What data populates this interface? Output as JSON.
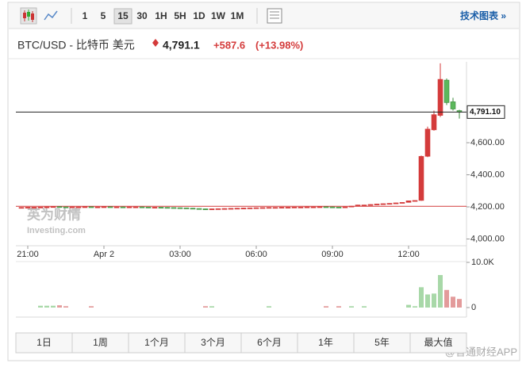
{
  "toolbar": {
    "intervals": [
      "1",
      "5",
      "15",
      "30",
      "1H",
      "5H",
      "1D",
      "1W",
      "1M"
    ],
    "selected": "15",
    "link": "技术图表 »"
  },
  "header": {
    "title": "BTC/USD - 比特币 美元",
    "price": "4,791.1",
    "change": "+587.6",
    "change_pct": "(+13.98%)"
  },
  "chart_data": {
    "type": "candlestick",
    "categories": [
      null,
      "21:00",
      null,
      null,
      null,
      null,
      null,
      null,
      null,
      null,
      null,
      null,
      null,
      "Apr 2",
      null,
      null,
      null,
      null,
      null,
      null,
      null,
      null,
      null,
      null,
      null,
      "03:00",
      null,
      null,
      null,
      null,
      null,
      null,
      null,
      null,
      null,
      null,
      null,
      "06:00",
      null,
      null,
      null,
      null,
      null,
      null,
      null,
      null,
      null,
      null,
      null,
      "09:00",
      null,
      null,
      null,
      null,
      null,
      null,
      null,
      null,
      null,
      null,
      null,
      "12:00",
      null,
      null,
      null,
      null,
      null,
      null,
      null,
      null
    ],
    "open": [
      4196,
      4197,
      4198,
      4198,
      4199,
      4200,
      4202,
      4200,
      4199,
      4200,
      4200,
      4201,
      4200,
      4200,
      4201,
      4200,
      4200,
      4199,
      4200,
      4200,
      4199,
      4198,
      4198,
      4197,
      4196,
      4195,
      4194,
      4192,
      4190,
      4188,
      4187,
      4188,
      4189,
      4190,
      4191,
      4192,
      4193,
      4194,
      4195,
      4196,
      4197,
      4197,
      4198,
      4198,
      4199,
      4199,
      4200,
      4200,
      4201,
      4200,
      4199,
      4198,
      4200,
      4205,
      4210,
      4212,
      4215,
      4218,
      4220,
      4222,
      4225,
      4228,
      4238,
      4240,
      4515,
      4680,
      4770,
      4990,
      4855,
      4800
    ],
    "high": [
      4198,
      4199,
      4199,
      4200,
      4201,
      4203,
      4203,
      4201,
      4201,
      4201,
      4202,
      4202,
      4201,
      4202,
      4202,
      4201,
      4201,
      4201,
      4201,
      4201,
      4200,
      4199,
      4199,
      4198,
      4197,
      4196,
      4195,
      4193,
      4191,
      4189,
      4189,
      4190,
      4191,
      4192,
      4193,
      4194,
      4195,
      4196,
      4197,
      4198,
      4198,
      4199,
      4199,
      4200,
      4200,
      4201,
      4201,
      4202,
      4202,
      4201,
      4200,
      4201,
      4206,
      4213,
      4213,
      4216,
      4219,
      4221,
      4223,
      4226,
      4229,
      4239,
      4241,
      4520,
      4700,
      4800,
      5095,
      5000,
      4880,
      4805
    ],
    "low": [
      4195,
      4196,
      4197,
      4197,
      4198,
      4199,
      4197,
      4198,
      4198,
      4199,
      4199,
      4199,
      4199,
      4199,
      4199,
      4199,
      4198,
      4198,
      4199,
      4198,
      4197,
      4197,
      4196,
      4195,
      4194,
      4193,
      4191,
      4189,
      4187,
      4186,
      4186,
      4187,
      4188,
      4189,
      4190,
      4191,
      4192,
      4193,
      4194,
      4195,
      4196,
      4196,
      4197,
      4197,
      4198,
      4198,
      4199,
      4199,
      4199,
      4198,
      4197,
      4197,
      4199,
      4204,
      4209,
      4211,
      4214,
      4217,
      4219,
      4221,
      4224,
      4227,
      4237,
      4238,
      4510,
      4675,
      4760,
      4835,
      4800,
      4750
    ],
    "close": [
      4197,
      4198,
      4198,
      4199,
      4200,
      4202,
      4198,
      4199,
      4200,
      4200,
      4201,
      4200,
      4200,
      4201,
      4200,
      4200,
      4199,
      4200,
      4200,
      4199,
      4198,
      4198,
      4197,
      4196,
      4195,
      4194,
      4192,
      4190,
      4188,
      4187,
      4188,
      4189,
      4190,
      4191,
      4192,
      4193,
      4194,
      4195,
      4196,
      4197,
      4197,
      4198,
      4198,
      4199,
      4199,
      4200,
      4200,
      4201,
      4200,
      4199,
      4198,
      4200,
      4205,
      4212,
      4212,
      4215,
      4218,
      4220,
      4222,
      4225,
      4228,
      4238,
      4240,
      4515,
      4685,
      4775,
      4995,
      4850,
      4810,
      4791.1
    ],
    "volume": [
      0,
      0,
      0,
      400,
      400,
      400,
      500,
      300,
      0,
      0,
      0,
      300,
      0,
      0,
      0,
      0,
      0,
      0,
      0,
      0,
      0,
      0,
      0,
      0,
      0,
      0,
      0,
      0,
      0,
      300,
      300,
      0,
      0,
      0,
      0,
      0,
      0,
      0,
      0,
      300,
      0,
      0,
      0,
      0,
      0,
      0,
      0,
      0,
      300,
      0,
      300,
      0,
      300,
      0,
      300,
      0,
      0,
      0,
      0,
      0,
      0,
      600,
      300,
      4500,
      2900,
      3100,
      7200,
      3900,
      2400,
      1900
    ],
    "ylim": [
      3958,
      5104
    ],
    "yticks": [
      {
        "value": 4000,
        "label": "4,000.00"
      },
      {
        "value": 4200,
        "label": "4,200.00"
      },
      {
        "value": 4400,
        "label": "4,400.00"
      },
      {
        "value": 4600,
        "label": "4,600.00"
      }
    ],
    "vlim": [
      0,
      10000
    ],
    "vticks": [
      0,
      {
        "value": 10000,
        "label": "10.0K"
      }
    ],
    "last_price": {
      "value": 4791.1,
      "label": "4,791.10"
    },
    "prev_close": 4203.5,
    "up_color": "#d43b3b",
    "down_color": "#5cb85c",
    "volume_up_color": "#a8d8a8",
    "volume_down_color": "#e39b9b",
    "grid": false
  },
  "ranges": [
    "1日",
    "1周",
    "1个月",
    "3个月",
    "6个月",
    "1年",
    "5年",
    "最大值"
  ],
  "watermark": {
    "logo_cn": "英为财情",
    "logo_en": "Investing.com",
    "source": "@智通财经APP"
  }
}
